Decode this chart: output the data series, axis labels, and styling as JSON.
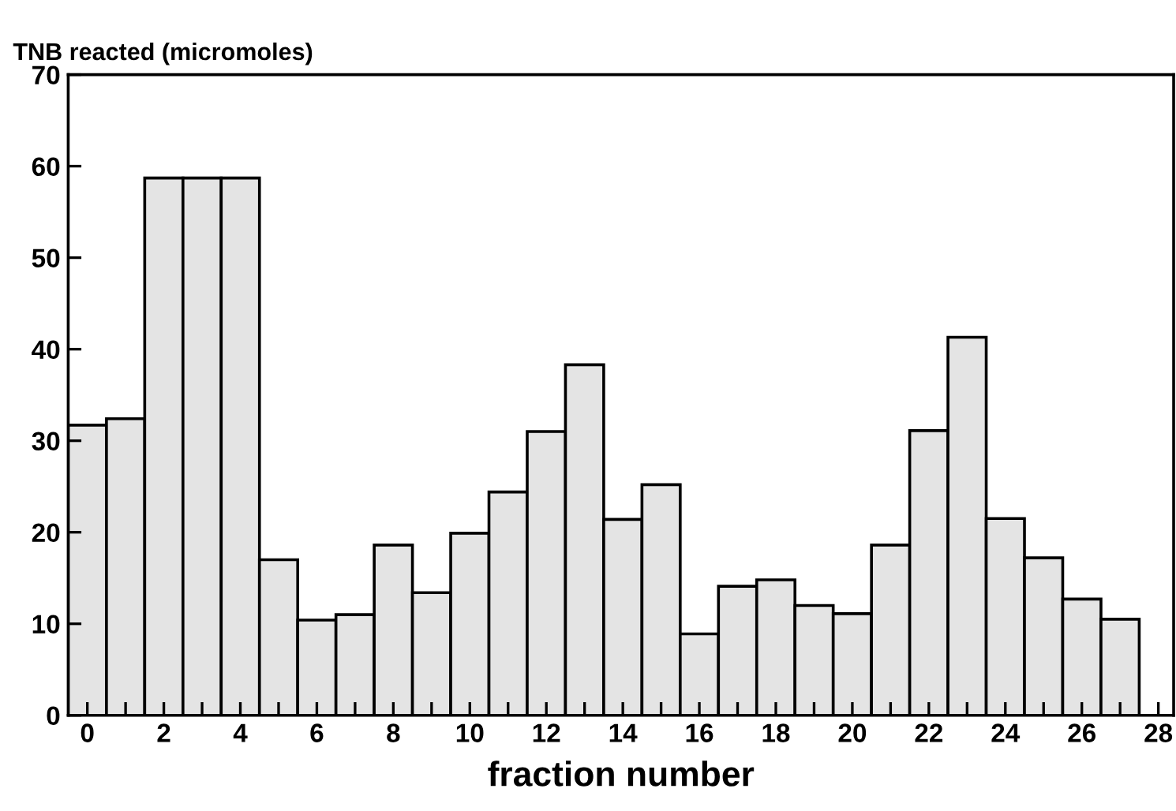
{
  "chart_data": {
    "type": "bar",
    "ylabel": "TNB reacted (micromoles)",
    "xlabel": "fraction number",
    "x": [
      0,
      1,
      2,
      3,
      4,
      5,
      6,
      7,
      8,
      9,
      10,
      11,
      12,
      13,
      14,
      15,
      16,
      17,
      18,
      19,
      20,
      21,
      22,
      23,
      24,
      25,
      26,
      27
    ],
    "values": [
      31.7,
      32.4,
      58.7,
      58.7,
      58.7,
      17.0,
      10.4,
      11.0,
      18.6,
      13.4,
      19.9,
      24.4,
      31.0,
      38.3,
      21.4,
      25.2,
      8.9,
      14.1,
      14.8,
      12.0,
      11.1,
      18.6,
      31.1,
      41.3,
      21.5,
      17.2,
      12.7,
      10.5
    ],
    "color": "#e4e4e4",
    "xlim": [
      -0.5,
      28.4
    ],
    "xticks": [
      0,
      {
        "value": 1,
        "label": null
      },
      2,
      {
        "value": 3,
        "label": null
      },
      4,
      {
        "value": 5,
        "label": null
      },
      6,
      {
        "value": 7,
        "label": null
      },
      8,
      {
        "value": 9,
        "label": null
      },
      10,
      {
        "value": 11,
        "label": null
      },
      12,
      {
        "value": 13,
        "label": null
      },
      14,
      {
        "value": 15,
        "label": null
      },
      16,
      {
        "value": 17,
        "label": null
      },
      18,
      {
        "value": 19,
        "label": null
      },
      20,
      {
        "value": 21,
        "label": null
      },
      22,
      {
        "value": 23,
        "label": null
      },
      24,
      {
        "value": 25,
        "label": null
      },
      26,
      {
        "value": 27,
        "label": null
      },
      28
    ],
    "ylim": [
      0,
      70
    ],
    "yticks": [
      0,
      10,
      20,
      30,
      40,
      50,
      60,
      70
    ],
    "grid": false,
    "legend": false
  }
}
